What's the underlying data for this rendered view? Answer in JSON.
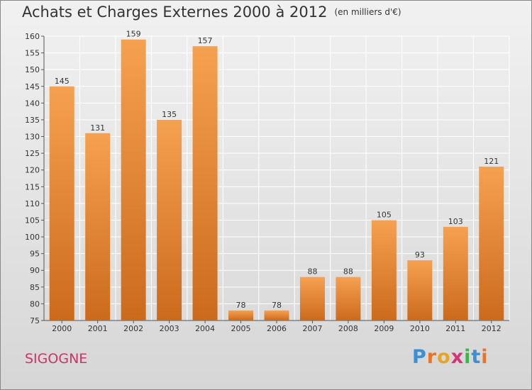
{
  "title": "Achats et Charges Externes 2000 à 2012",
  "subtitle": "(en milliers d'€)",
  "location": "SIGOGNE",
  "logo": {
    "text": "Proxiti",
    "letter_colors": [
      "#3b8fd6",
      "#e8742a",
      "#e8a42a",
      "#d6347a",
      "#3bb54a",
      "#3b8fd6",
      "#e8742a"
    ]
  },
  "colors": {
    "bar_top": "#f5a150",
    "bar_bottom": "#cc6a1c",
    "grid": "#ffffff",
    "text": "#333333"
  },
  "chart_data": {
    "type": "bar",
    "title": "Achats et Charges Externes 2000 à 2012",
    "subtitle": "(en milliers d'€)",
    "categories": [
      "2000",
      "2001",
      "2002",
      "2003",
      "2004",
      "2005",
      "2006",
      "2007",
      "2008",
      "2009",
      "2010",
      "2011",
      "2012"
    ],
    "values": [
      145,
      131,
      159,
      135,
      157,
      78,
      78,
      88,
      88,
      105,
      93,
      103,
      121
    ],
    "ylim": [
      75,
      160
    ],
    "yticks": [
      75,
      80,
      85,
      90,
      95,
      100,
      105,
      110,
      115,
      120,
      125,
      130,
      135,
      140,
      145,
      150,
      155,
      160
    ],
    "grid": true,
    "data_labels": true
  }
}
